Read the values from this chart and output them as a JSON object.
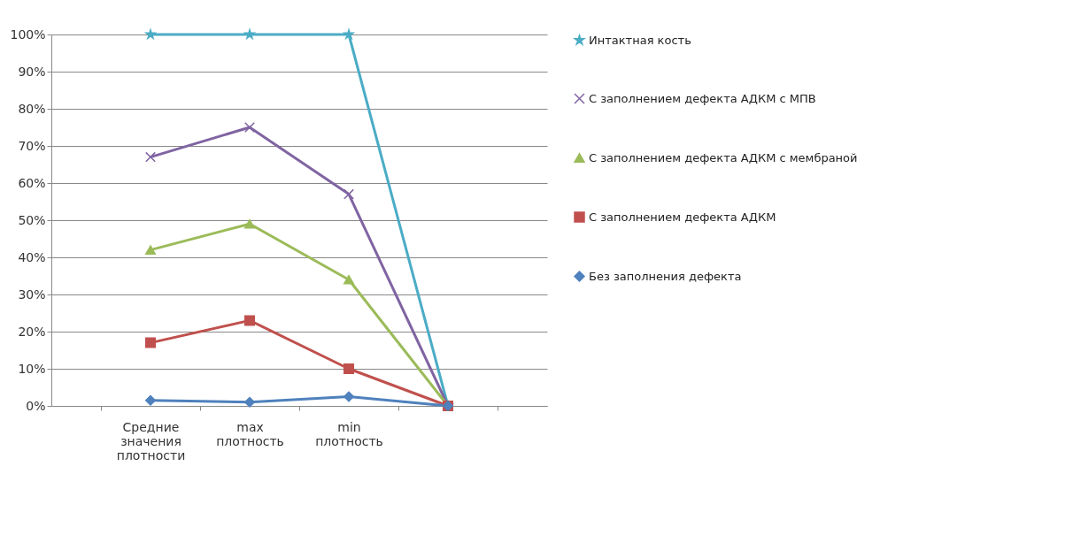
{
  "chart_data": {
    "type": "line",
    "categories": [
      "Средние значения плотности",
      "max плотность",
      "min плотность",
      null
    ],
    "ylim": [
      0,
      100
    ],
    "yticks": [
      {
        "value": 0,
        "label": "0%"
      },
      {
        "value": 10,
        "label": "10%"
      },
      {
        "value": 20,
        "label": "20%"
      },
      {
        "value": 30,
        "label": "30%"
      },
      {
        "value": 40,
        "label": "40%"
      },
      {
        "value": 50,
        "label": "50%"
      },
      {
        "value": 60,
        "label": "60%"
      },
      {
        "value": 70,
        "label": "70%"
      },
      {
        "value": 80,
        "label": "80%"
      },
      {
        "value": 90,
        "label": "90%"
      },
      {
        "value": 100,
        "label": "100%"
      }
    ],
    "grid": "y",
    "legend": "right",
    "series": [
      {
        "name": "Интактная кость",
        "color": "#4bacc6",
        "marker": "star",
        "values": [
          100,
          100,
          100,
          0
        ]
      },
      {
        "name": "С заполнением дефекта АДКМ с МПВ",
        "color": "#8064a2",
        "marker": "cross",
        "values": [
          67,
          75,
          57,
          0
        ]
      },
      {
        "name": "С заполнением дефекта АДКМ с мембраной",
        "color": "#9bbb59",
        "marker": "triangle",
        "values": [
          42,
          49,
          34,
          0
        ]
      },
      {
        "name": "С заполнением дефекта АДКМ",
        "color": "#c0504d",
        "marker": "square",
        "values": [
          17,
          23,
          10,
          0
        ]
      },
      {
        "name": "Без заполнения дефекта",
        "color": "#4f81bd",
        "marker": "diamond",
        "values": [
          1.5,
          1,
          2.5,
          0
        ]
      }
    ]
  }
}
